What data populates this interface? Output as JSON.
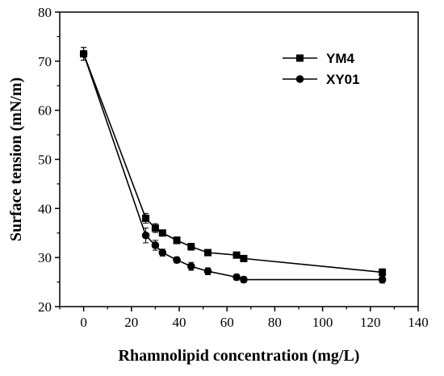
{
  "chart_data": {
    "type": "line",
    "title": "",
    "xlabel": "Rhamnolipid concentration (mg/L)",
    "ylabel": "Surface tension (mN/m)",
    "xlim": [
      -10,
      140
    ],
    "ylim": [
      20,
      80
    ],
    "xticks": [
      0,
      20,
      40,
      60,
      80,
      100,
      120,
      140
    ],
    "yticks": [
      20,
      30,
      40,
      50,
      60,
      70,
      80
    ],
    "x_tick_labels": [
      "0",
      "20",
      "40",
      "60",
      "80",
      "100",
      "120",
      "140"
    ],
    "y_tick_labels": [
      "20",
      "30",
      "40",
      "50",
      "60",
      "70",
      "80"
    ],
    "grid": false,
    "legend_position": "top-right",
    "series": [
      {
        "name": "YM4",
        "marker": "square",
        "color": "#000000",
        "x": [
          0,
          26,
          30,
          33,
          39,
          45,
          52,
          64,
          67,
          125
        ],
        "y": [
          71.5,
          38,
          36,
          35,
          33.5,
          32.2,
          31,
          30.5,
          29.8,
          27
        ],
        "error": [
          1.3,
          1.0,
          0.9,
          0.6,
          0.7,
          0.7,
          0.6,
          0.5,
          0.5,
          0.7
        ]
      },
      {
        "name": "XY01",
        "marker": "circle",
        "color": "#000000",
        "x": [
          0,
          26,
          30,
          33,
          39,
          45,
          52,
          64,
          67,
          125
        ],
        "y": [
          71.5,
          34.5,
          32.5,
          31,
          29.5,
          28.2,
          27.2,
          26,
          25.5,
          25.5
        ],
        "error": [
          1.3,
          1.5,
          1.0,
          0.7,
          0.6,
          0.8,
          0.7,
          0.6,
          0.6,
          0.7
        ]
      }
    ]
  }
}
